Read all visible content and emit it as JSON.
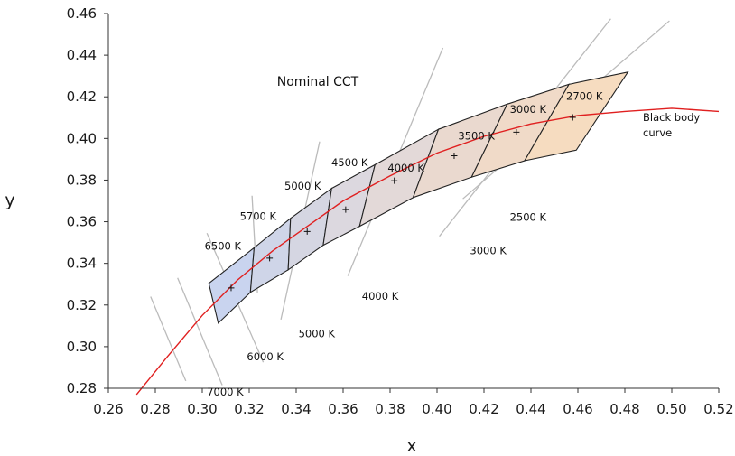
{
  "chart_data": {
    "type": "line",
    "title": "Nominal CCT",
    "xlabel": "x",
    "ylabel": "y",
    "xlim": [
      0.26,
      0.52
    ],
    "ylim": [
      0.28,
      0.46
    ],
    "grid": false,
    "xticks": [
      "0.26",
      "0.28",
      "0.30",
      "0.32",
      "0.34",
      "0.36",
      "0.38",
      "0.40",
      "0.42",
      "0.44",
      "0.46",
      "0.48",
      "0.50",
      "0.52"
    ],
    "yticks": [
      "0.28",
      "0.30",
      "0.32",
      "0.34",
      "0.36",
      "0.38",
      "0.40",
      "0.42",
      "0.44",
      "0.46"
    ],
    "colors": {
      "blackbody": "#e02020",
      "quad_cool": "#c9d4ef",
      "quad_warm": "#f6dcc0",
      "isotemp": "#bbbbbb",
      "outline": "#222222"
    },
    "blackbody_curve": {
      "label_line1": "Black body",
      "label_line2": "curve",
      "points": [
        [
          0.272,
          0.277
        ],
        [
          0.285,
          0.295
        ],
        [
          0.3,
          0.315
        ],
        [
          0.315,
          0.332
        ],
        [
          0.33,
          0.346
        ],
        [
          0.345,
          0.358
        ],
        [
          0.36,
          0.37
        ],
        [
          0.38,
          0.382
        ],
        [
          0.4,
          0.393
        ],
        [
          0.42,
          0.401
        ],
        [
          0.44,
          0.407
        ],
        [
          0.46,
          0.411
        ],
        [
          0.48,
          0.413
        ],
        [
          0.5,
          0.4145
        ],
        [
          0.52,
          0.413
        ]
      ]
    },
    "quadrangles": [
      {
        "cct": "6500 K",
        "center": [
          0.3123,
          0.3282
        ],
        "corners": [
          [
            0.3028,
            0.3304
          ],
          [
            0.3221,
            0.3475
          ],
          [
            0.3205,
            0.3261
          ],
          [
            0.3068,
            0.3113
          ]
        ],
        "color": "#c9d4ef"
      },
      {
        "cct": "5700 K",
        "center": [
          0.3287,
          0.3425
        ],
        "corners": [
          [
            0.3221,
            0.3475
          ],
          [
            0.3376,
            0.3616
          ],
          [
            0.3366,
            0.3369
          ],
          [
            0.3205,
            0.3261
          ]
        ],
        "color": "#cfd5e8"
      },
      {
        "cct": "5000 K",
        "center": [
          0.3447,
          0.3553
        ],
        "corners": [
          [
            0.3376,
            0.3616
          ],
          [
            0.3551,
            0.376
          ],
          [
            0.3515,
            0.3487
          ],
          [
            0.3366,
            0.3369
          ]
        ],
        "color": "#d5d6e2"
      },
      {
        "cct": "4500 K",
        "center": [
          0.3611,
          0.3658
        ],
        "corners": [
          [
            0.3551,
            0.376
          ],
          [
            0.3736,
            0.3874
          ],
          [
            0.367,
            0.3578
          ],
          [
            0.3515,
            0.3487
          ]
        ],
        "color": "#dcd8df"
      },
      {
        "cct": "4000 K",
        "center": [
          0.3818,
          0.3797
        ],
        "corners": [
          [
            0.3736,
            0.3874
          ],
          [
            0.4006,
            0.4044
          ],
          [
            0.3898,
            0.3716
          ],
          [
            0.367,
            0.3578
          ]
        ],
        "color": "#e3d9d8"
      },
      {
        "cct": "3500 K",
        "center": [
          0.4073,
          0.3917
        ],
        "corners": [
          [
            0.4006,
            0.4044
          ],
          [
            0.4299,
            0.4165
          ],
          [
            0.4147,
            0.3814
          ],
          [
            0.3898,
            0.3716
          ]
        ],
        "color": "#ead9cf"
      },
      {
        "cct": "3000 K",
        "center": [
          0.4338,
          0.403
        ],
        "corners": [
          [
            0.4299,
            0.4165
          ],
          [
            0.4562,
            0.426
          ],
          [
            0.4373,
            0.3893
          ],
          [
            0.4147,
            0.3814
          ]
        ],
        "color": "#f0dac8"
      },
      {
        "cct": "2700 K",
        "center": [
          0.4578,
          0.4101
        ],
        "corners": [
          [
            0.4562,
            0.426
          ],
          [
            0.4813,
            0.4319
          ],
          [
            0.4593,
            0.3944
          ],
          [
            0.4373,
            0.3893
          ]
        ],
        "color": "#f6dcc0"
      }
    ],
    "quad_labels": [
      {
        "text": "6500 K",
        "x": 0.301,
        "y": 0.3465
      },
      {
        "text": "5700 K",
        "x": 0.316,
        "y": 0.361
      },
      {
        "text": "5000 K",
        "x": 0.335,
        "y": 0.3755
      },
      {
        "text": "4500 K",
        "x": 0.355,
        "y": 0.3867
      },
      {
        "text": "4000 K",
        "x": 0.379,
        "y": 0.384
      },
      {
        "text": "3500 K",
        "x": 0.409,
        "y": 0.3995
      },
      {
        "text": "3000 K",
        "x": 0.431,
        "y": 0.4122
      },
      {
        "text": "2700 K",
        "x": 0.455,
        "y": 0.4185
      }
    ],
    "isotemp_lines": [
      {
        "label": "7000 K",
        "from": [
          0.2895,
          0.333
        ],
        "to": [
          0.3085,
          0.2815
        ],
        "label_pos": [
          0.302,
          0.2765
        ]
      },
      {
        "label": null,
        "from": [
          0.278,
          0.324
        ],
        "to": [
          0.293,
          0.2835
        ],
        "label_pos": null
      },
      {
        "label": "6000 K",
        "from": [
          0.302,
          0.3545
        ],
        "to": [
          0.326,
          0.2925
        ],
        "label_pos": [
          0.319,
          0.2935
        ]
      },
      {
        "label": null,
        "from": [
          0.3212,
          0.3725
        ],
        "to": [
          0.3235,
          0.326
        ],
        "label_pos": null
      },
      {
        "label": "5000 K",
        "from": [
          0.35,
          0.3985
        ],
        "to": [
          0.3335,
          0.313
        ],
        "label_pos": [
          0.341,
          0.3045
        ]
      },
      {
        "label": "4000 K",
        "from": [
          0.4025,
          0.4435
        ],
        "to": [
          0.362,
          0.334
        ],
        "label_pos": [
          0.368,
          0.3225
        ]
      },
      {
        "label": "3000 K",
        "from": [
          0.474,
          0.4575
        ],
        "to": [
          0.401,
          0.353
        ],
        "label_pos": [
          0.414,
          0.3445
        ]
      },
      {
        "label": "2500 K",
        "from": [
          0.499,
          0.4565
        ],
        "to": [
          0.411,
          0.371
        ],
        "label_pos": [
          0.431,
          0.3605
        ]
      }
    ]
  }
}
